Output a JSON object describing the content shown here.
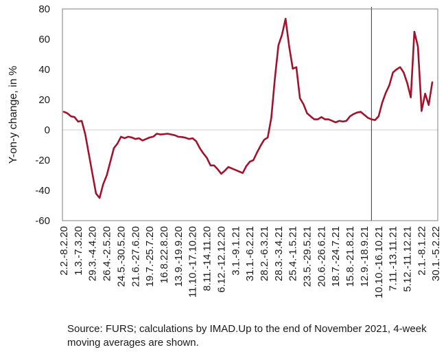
{
  "chart_data": {
    "type": "line",
    "ylabel": "Y-on-y change, in %",
    "ylim": [
      -60,
      80
    ],
    "yticks": [
      -60,
      -40,
      -20,
      0,
      20,
      40,
      60,
      80
    ],
    "grid": false,
    "line_color": "#a3122a",
    "marker_color": "#333333",
    "x_tick_labels": [
      "2.2.-8.2.20",
      "1.3.-7.3.20",
      "29.3.-4.4.20",
      "26.4.-2.5.20",
      "24.5.-30.5.20",
      "21.6.-27.6.20",
      "19.7.-25.7.20",
      "16.8.22.8.20",
      "13.9.-19.9.20",
      "11.10.-17.10.20",
      "8.11.-14.11.20",
      "6.12.-12.12.20",
      "3.1.-9.1.21",
      "31.1.-6.2.21",
      "28.2.-6.3.21",
      "28.3.-3.4.21",
      "25.4.-1.5.21",
      "23.5.-29.5.21",
      "20.6.-26.6.21",
      "18.7.-24.7.21",
      "15.8.-21.8.21",
      "12.9.-18.9.21",
      "10.10.-16.10.21",
      "7.11.-13.11.21",
      "5.12.-11.12.21",
      "2.1.-8.1.22",
      "30.1.-5.2.22"
    ],
    "tick_every": 4,
    "marker_index": 86,
    "values": [
      12,
      11,
      9,
      8.5,
      5.5,
      6,
      -3,
      -16,
      -29,
      -42,
      -45,
      -36,
      -30,
      -21,
      -12,
      -9,
      -4.5,
      -5.5,
      -4.5,
      -5,
      -6,
      -5.5,
      -7,
      -6,
      -5,
      -4.5,
      -2.5,
      -3,
      -2.8,
      -2.5,
      -3,
      -3.5,
      -4.5,
      -4.7,
      -5.2,
      -6,
      -5.5,
      -7.5,
      -12,
      -15.5,
      -18.5,
      -23.5,
      -23.5,
      -26,
      -29,
      -27,
      -24.5,
      -25.5,
      -26.5,
      -27.5,
      -28.5,
      -24,
      -21,
      -20,
      -15,
      -10.5,
      -6.5,
      -5,
      8,
      34,
      56,
      63,
      73.5,
      55,
      40.5,
      41.5,
      21,
      17,
      11,
      9,
      7,
      7,
      8.5,
      7,
      7,
      6,
      5,
      6,
      5.5,
      6,
      9,
      10.5,
      11.5,
      12,
      10,
      8,
      7,
      6.5,
      9,
      18,
      24.5,
      29.5,
      38,
      40,
      41.5,
      38,
      31,
      21.5,
      65,
      55,
      12.5,
      24,
      16.5,
      31.5
    ]
  },
  "source": {
    "text": "Source: FURS; calculations by IMAD.Up to the end of November 2021, 4-week moving averages are shown."
  }
}
